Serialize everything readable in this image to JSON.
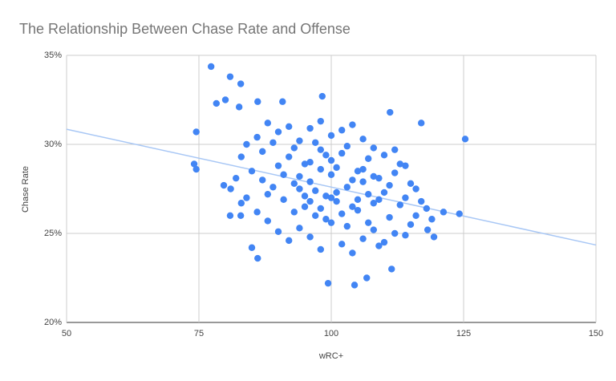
{
  "chart_data": {
    "type": "scatter",
    "title": "The Relationship Between Chase Rate and Offense",
    "x_label": "wRC+",
    "y_label": "Chase Rate",
    "color": "#4285f4",
    "grid": true,
    "xlim": [
      50,
      150
    ],
    "xticks": [
      50,
      75,
      100,
      125,
      150
    ],
    "ylim": [
      20,
      35
    ],
    "yticks": [
      {
        "value": 20,
        "label": "20%"
      },
      {
        "value": 25,
        "label": "25%"
      },
      {
        "value": 30,
        "label": "30%"
      },
      {
        "value": 35,
        "label": "35%"
      }
    ],
    "x": [
      77.3,
      80.9,
      82.9,
      80.0,
      78.3,
      86.1,
      90.8,
      98.3,
      82.6,
      74.5,
      74.1,
      125.3,
      124.2,
      121.2,
      117.0,
      111.1,
      99.4,
      104.4,
      106.7,
      111.4,
      86.1,
      85.0,
      119.4,
      118.2,
      79.7,
      74.5,
      80.9,
      82.9,
      85,
      87,
      88,
      89,
      90,
      91,
      92,
      93,
      94,
      95,
      96,
      97,
      98,
      99,
      100,
      101,
      102,
      103,
      104,
      105,
      106,
      107,
      108,
      109,
      110,
      111,
      112,
      113,
      114,
      115,
      86,
      88,
      90,
      92,
      94,
      96,
      98,
      100,
      102,
      104,
      106,
      108,
      110,
      112,
      114,
      116,
      118,
      119,
      84,
      86,
      88,
      90,
      92,
      94,
      96,
      98,
      100,
      102,
      104,
      106,
      108,
      110,
      112,
      114,
      116,
      117,
      83,
      84,
      82,
      81,
      83,
      87,
      89,
      91,
      93,
      95,
      97,
      99,
      101,
      103,
      105,
      107,
      109,
      111,
      113,
      115,
      93,
      95,
      97,
      99,
      101,
      103,
      105,
      107,
      109,
      94,
      96,
      98,
      100,
      102,
      104,
      106,
      108,
      100,
      98,
      96
    ],
    "values": [
      34.37,
      33.8,
      33.4,
      32.5,
      32.3,
      32.4,
      32.4,
      32.7,
      32.1,
      30.7,
      28.9,
      30.3,
      26.1,
      26.2,
      31.2,
      31.8,
      22.2,
      22.1,
      22.5,
      23.0,
      23.6,
      24.2,
      24.8,
      25.2,
      27.7,
      28.6,
      26.0,
      26.0,
      28.5,
      29.6,
      27.2,
      30.1,
      28.8,
      26.9,
      29.3,
      27.8,
      28.2,
      26.5,
      29.0,
      27.4,
      28.6,
      27.1,
      28.3,
      26.8,
      29.5,
      27.6,
      28.0,
      26.3,
      27.9,
      29.2,
      26.7,
      28.1,
      27.3,
      25.9,
      28.4,
      26.6,
      27.0,
      25.5,
      30.4,
      31.2,
      30.7,
      31.0,
      30.2,
      30.9,
      31.3,
      30.5,
      30.8,
      31.1,
      30.3,
      29.8,
      29.4,
      29.7,
      28.8,
      27.5,
      26.4,
      25.8,
      27.0,
      26.2,
      25.7,
      25.1,
      24.6,
      25.3,
      24.8,
      24.1,
      25.6,
      24.4,
      23.9,
      24.7,
      25.2,
      24.5,
      25.0,
      24.9,
      26.0,
      26.8,
      29.3,
      30.0,
      28.1,
      27.5,
      26.7,
      28.0,
      27.6,
      28.3,
      29.8,
      28.9,
      30.1,
      29.4,
      28.7,
      29.9,
      28.5,
      27.2,
      26.9,
      27.7,
      28.9,
      27.8,
      26.2,
      27.1,
      26.0,
      25.8,
      27.3,
      25.4,
      26.9,
      25.6,
      24.3,
      27.5,
      27.9,
      26.4,
      27.0,
      26.1,
      26.5,
      28.6,
      28.2,
      29.1,
      29.7,
      26.8
    ],
    "trendline": {
      "x": [
        50,
        150
      ],
      "y": [
        30.85,
        24.35
      ],
      "color": "#a8c7f5"
    }
  }
}
